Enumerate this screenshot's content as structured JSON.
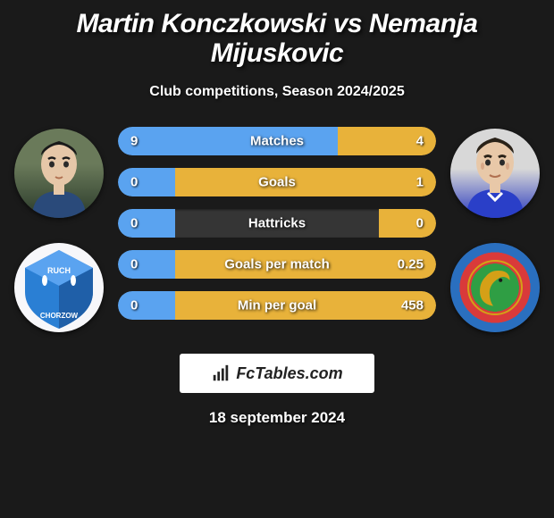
{
  "title": "Martin Konczkowski vs Nemanja Mijuskovic",
  "subtitle": "Club competitions, Season 2024/2025",
  "date": "18 september 2024",
  "branding_text": "FcTables.com",
  "colors": {
    "background": "#1a1a1a",
    "bar_track": "#353535",
    "player1_bar": "#5aa3f0",
    "player2_bar": "#e8b23a",
    "text": "#ffffff"
  },
  "player1": {
    "name": "Martin Konczkowski",
    "club_name": "Ruch Chorzow",
    "club_label_top": "RUCH",
    "club_label_bottom": "CHORZOW"
  },
  "player2": {
    "name": "Nemanja Mijuskovic",
    "club_name": "Miedz Legnica"
  },
  "stats": [
    {
      "label": "Matches",
      "p1": "9",
      "p2": "4",
      "p1_pct": 69,
      "p2_pct": 31
    },
    {
      "label": "Goals",
      "p1": "0",
      "p2": "1",
      "p1_pct": 18,
      "p2_pct": 82
    },
    {
      "label": "Hattricks",
      "p1": "0",
      "p2": "0",
      "p1_pct": 18,
      "p2_pct": 18
    },
    {
      "label": "Goals per match",
      "p1": "0",
      "p2": "0.25",
      "p1_pct": 18,
      "p2_pct": 82
    },
    {
      "label": "Min per goal",
      "p1": "0",
      "p2": "458",
      "p1_pct": 18,
      "p2_pct": 82
    }
  ]
}
